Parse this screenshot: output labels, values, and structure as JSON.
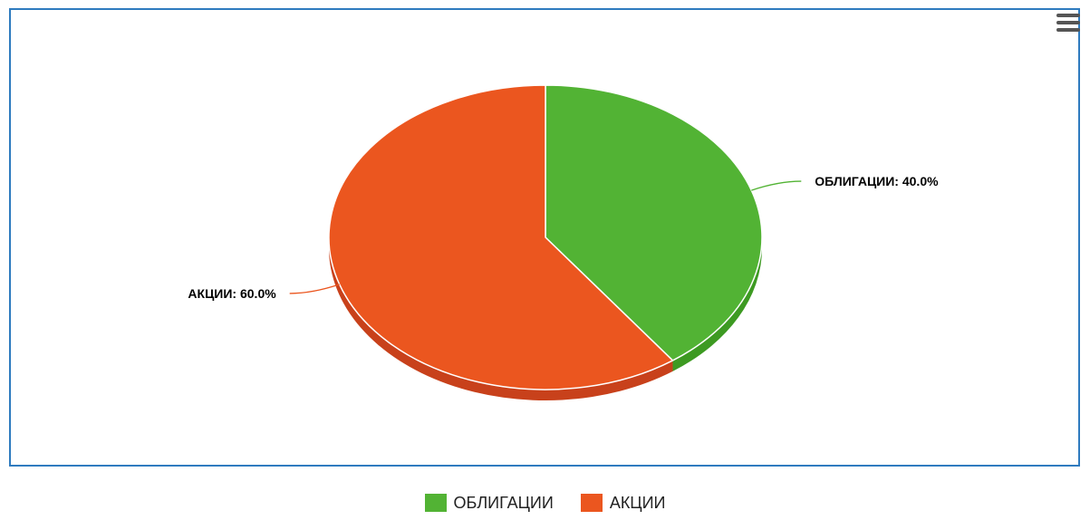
{
  "chart_data": {
    "type": "pie",
    "title": "",
    "slices": [
      {
        "name": "ОБЛИГАЦИИ",
        "value": 40.0,
        "color": "#52b334",
        "side_color": "#3d9a22",
        "data_label": "ОБЛИГАЦИИ: 40.0%"
      },
      {
        "name": "АКЦИИ",
        "value": 60.0,
        "color": "#eb561f",
        "side_color": "#c8411b",
        "data_label": "АКЦИИ: 60.0%"
      }
    ],
    "legend_position": "bottom-center"
  },
  "legend": {
    "items": [
      {
        "label": "ОБЛИГАЦИИ",
        "color": "#52b334"
      },
      {
        "label": "АКЦИИ",
        "color": "#eb561f"
      }
    ]
  },
  "menu": {
    "icon": "hamburger-menu-icon"
  },
  "colors": {
    "border": "#2f7bbf"
  }
}
